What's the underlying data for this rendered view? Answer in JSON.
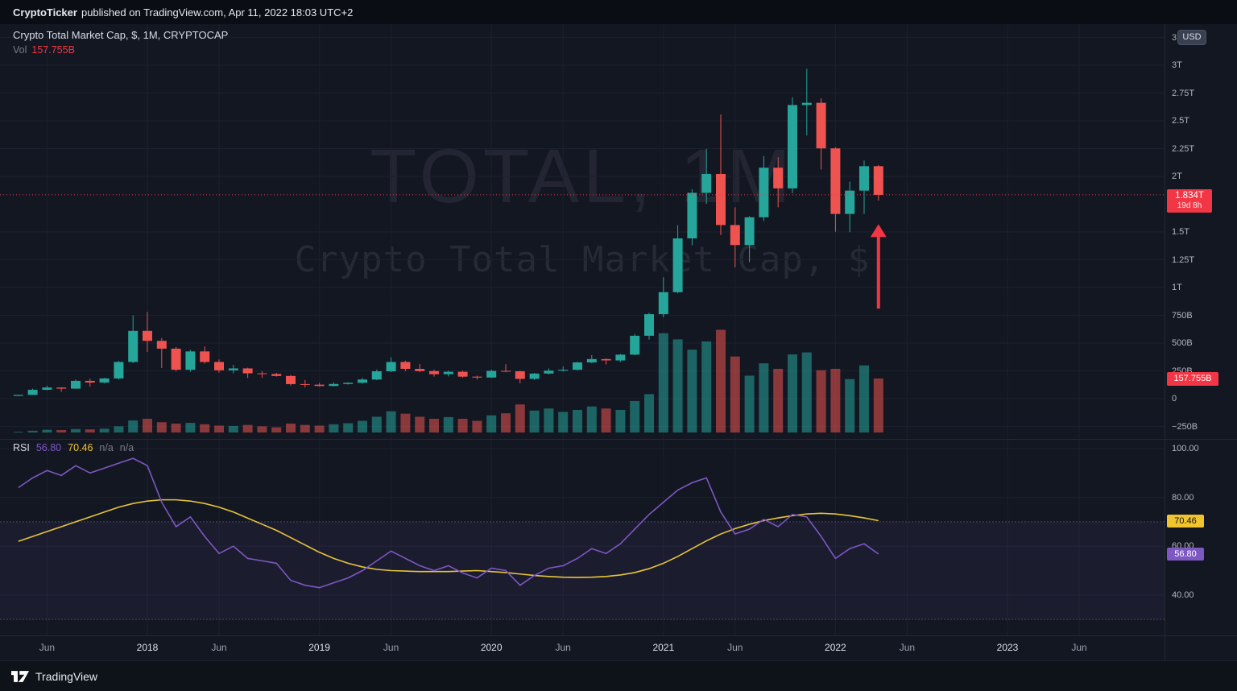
{
  "attribution": {
    "author": "CryptoTicker",
    "rest": "published on TradingView.com, Apr 11, 2022 18:03 UTC+2"
  },
  "legend": {
    "title": "Crypto Total Market Cap, $, 1M, CRYPTOCAP",
    "vol_label": "Vol",
    "vol_value": "157.755B"
  },
  "watermark": {
    "line1": "TOTAL, 1M",
    "line2": "Crypto Total Market Cap, $"
  },
  "rsi_legend": {
    "label": "RSI",
    "value": "56.80",
    "ma_value": "70.46",
    "na1": "n/a",
    "na2": "n/a"
  },
  "badges": {
    "price": {
      "value": "1.834T",
      "countdown": "19d 8h"
    },
    "volume": {
      "value": "157.755B"
    },
    "rsi_ma": {
      "value": "70.46"
    },
    "rsi": {
      "value": "56.80"
    }
  },
  "axis": {
    "currency_button": "USD"
  },
  "footer": {
    "brand": "TradingView"
  },
  "colors": {
    "bg": "#131722",
    "up": "#26a69a",
    "down": "#ef5350",
    "price_line": "#f23645",
    "rsi_line": "#7e57c2",
    "rsi_ma_line": "#e7c53a",
    "grid": "#1b202e",
    "axis_text": "#b2b5be",
    "badge_red": "#f23645",
    "badge_yellow": "#efc42e",
    "badge_purple": "#7e57c2"
  },
  "chart_data": {
    "type": "candlestick+volume+rsi",
    "symbol": "CRYPTOCAP:TOTAL",
    "interval": "1M",
    "units": "billions_usd",
    "title": "Crypto Total Market Cap, $, 1M, CRYPTOCAP",
    "months": [
      "2017-04",
      "2017-05",
      "2017-06",
      "2017-07",
      "2017-08",
      "2017-09",
      "2017-10",
      "2017-11",
      "2017-12",
      "2018-01",
      "2018-02",
      "2018-03",
      "2018-04",
      "2018-05",
      "2018-06",
      "2018-07",
      "2018-08",
      "2018-09",
      "2018-10",
      "2018-11",
      "2018-12",
      "2019-01",
      "2019-02",
      "2019-03",
      "2019-04",
      "2019-05",
      "2019-06",
      "2019-07",
      "2019-08",
      "2019-09",
      "2019-10",
      "2019-11",
      "2019-12",
      "2020-01",
      "2020-02",
      "2020-03",
      "2020-04",
      "2020-05",
      "2020-06",
      "2020-07",
      "2020-08",
      "2020-09",
      "2020-10",
      "2020-11",
      "2020-12",
      "2021-01",
      "2021-02",
      "2021-03",
      "2021-04",
      "2021-05",
      "2021-06",
      "2021-07",
      "2021-08",
      "2021-09",
      "2021-10",
      "2021-11",
      "2021-12",
      "2022-01",
      "2022-02",
      "2022-03",
      "2022-04"
    ],
    "candles": [
      [
        25,
        35,
        24,
        34
      ],
      [
        34,
        90,
        33,
        80
      ],
      [
        80,
        117,
        75,
        100
      ],
      [
        100,
        102,
        62,
        90
      ],
      [
        90,
        172,
        88,
        160
      ],
      [
        160,
        180,
        108,
        145
      ],
      [
        145,
        187,
        138,
        182
      ],
      [
        182,
        340,
        172,
        330
      ],
      [
        330,
        750,
        320,
        610
      ],
      [
        610,
        780,
        420,
        520
      ],
      [
        520,
        545,
        276,
        450
      ],
      [
        450,
        465,
        245,
        260
      ],
      [
        260,
        440,
        242,
        425
      ],
      [
        425,
        470,
        315,
        330
      ],
      [
        330,
        352,
        234,
        255
      ],
      [
        255,
        305,
        228,
        272
      ],
      [
        272,
        278,
        186,
        228
      ],
      [
        228,
        248,
        188,
        222
      ],
      [
        222,
        232,
        198,
        204
      ],
      [
        204,
        214,
        118,
        131
      ],
      [
        131,
        168,
        101,
        126
      ],
      [
        126,
        142,
        108,
        114
      ],
      [
        114,
        147,
        110,
        132
      ],
      [
        132,
        147,
        127,
        143
      ],
      [
        143,
        188,
        134,
        172
      ],
      [
        172,
        262,
        167,
        246
      ],
      [
        246,
        372,
        238,
        330
      ],
      [
        330,
        342,
        248,
        268
      ],
      [
        268,
        312,
        238,
        248
      ],
      [
        248,
        262,
        198,
        220
      ],
      [
        220,
        252,
        200,
        242
      ],
      [
        242,
        252,
        188,
        198
      ],
      [
        198,
        206,
        172,
        190
      ],
      [
        190,
        262,
        186,
        250
      ],
      [
        250,
        310,
        238,
        246
      ],
      [
        246,
        252,
        138,
        178
      ],
      [
        178,
        232,
        168,
        226
      ],
      [
        226,
        272,
        218,
        252
      ],
      [
        252,
        290,
        244,
        260
      ],
      [
        260,
        332,
        254,
        326
      ],
      [
        326,
        392,
        318,
        356
      ],
      [
        356,
        362,
        308,
        344
      ],
      [
        344,
        402,
        330,
        396
      ],
      [
        396,
        582,
        390,
        566
      ],
      [
        566,
        772,
        532,
        760
      ],
      [
        760,
        1092,
        732,
        958
      ],
      [
        958,
        1562,
        948,
        1442
      ],
      [
        1442,
        1884,
        1380,
        1852
      ],
      [
        1852,
        2248,
        1752,
        2022
      ],
      [
        2022,
        2556,
        1472,
        1562
      ],
      [
        1562,
        1722,
        1182,
        1382
      ],
      [
        1382,
        1642,
        1228,
        1632
      ],
      [
        1632,
        2182,
        1598,
        2078
      ],
      [
        2078,
        2172,
        1722,
        1892
      ],
      [
        1892,
        2712,
        1848,
        2642
      ],
      [
        2642,
        2968,
        2368,
        2662
      ],
      [
        2662,
        2702,
        2062,
        2252
      ],
      [
        2252,
        2262,
        1502,
        1662
      ],
      [
        1662,
        1952,
        1498,
        1872
      ],
      [
        1872,
        2142,
        1662,
        2092
      ],
      [
        2092,
        2102,
        1782,
        1834
      ]
    ],
    "volume": [
      2,
      5,
      8,
      7,
      10,
      9,
      11,
      18,
      35,
      40,
      30,
      26,
      28,
      24,
      20,
      19,
      22,
      18,
      15,
      26,
      22,
      20,
      24,
      27,
      34,
      46,
      62,
      55,
      46,
      40,
      45,
      40,
      34,
      50,
      56,
      82,
      64,
      70,
      60,
      66,
      76,
      70,
      66,
      92,
      112,
      290,
      272,
      242,
      266,
      300,
      222,
      166,
      202,
      186,
      228,
      234,
      182,
      186,
      156,
      196,
      157.755
    ],
    "rsi": [
      84,
      88,
      91,
      89,
      93,
      90,
      92,
      94,
      96,
      93,
      78,
      68,
      72,
      64,
      57,
      60,
      55,
      54,
      53,
      46,
      44,
      43,
      45,
      47,
      50,
      54,
      58,
      55,
      52,
      50,
      52,
      49,
      47,
      51,
      50,
      44,
      48,
      51,
      52,
      55,
      59,
      57,
      61,
      67,
      73,
      78,
      83,
      86,
      88,
      74,
      65,
      67,
      71,
      68,
      73,
      72,
      64,
      55,
      59,
      61,
      56.8
    ],
    "rsi_ma": [
      62,
      64,
      66,
      68,
      70,
      72,
      74,
      76,
      77.5,
      78.5,
      79,
      79,
      78.5,
      77.5,
      76,
      74,
      71.5,
      69,
      66.5,
      63.5,
      60.5,
      57.5,
      55,
      53,
      51.5,
      50.5,
      50,
      49.8,
      49.6,
      49.6,
      49.6,
      49.8,
      50,
      49.6,
      49.2,
      48.6,
      48,
      47.6,
      47.3,
      47.2,
      47.3,
      47.6,
      48.2,
      49.2,
      50.8,
      53,
      55.8,
      59,
      62.2,
      65,
      67.2,
      69,
      70.5,
      71.6,
      72.5,
      73.2,
      73.5,
      73.2,
      72.5,
      71.6,
      70.46
    ],
    "current_price_b": 1834,
    "current_volume_b": 157.755,
    "rsi_value": 56.8,
    "rsi_ma_value": 70.46,
    "rsi_bands": [
      70,
      30
    ],
    "price_axis_ticks": [
      {
        "label": "3.25T",
        "value": 3250
      },
      {
        "label": "3T",
        "value": 3000
      },
      {
        "label": "2.75T",
        "value": 2750
      },
      {
        "label": "2.5T",
        "value": 2500
      },
      {
        "label": "2.25T",
        "value": 2250
      },
      {
        "label": "2T",
        "value": 2000
      },
      {
        "label": "1.5T",
        "value": 1500
      },
      {
        "label": "1.25T",
        "value": 1250
      },
      {
        "label": "1T",
        "value": 1000
      },
      {
        "label": "750B",
        "value": 750
      },
      {
        "label": "500B",
        "value": 500
      },
      {
        "label": "250B",
        "value": 250
      },
      {
        "label": "0",
        "value": 0
      },
      {
        "label": "−250B",
        "value": -250
      }
    ],
    "rsi_axis_ticks": [
      {
        "label": "100.00",
        "value": 100
      },
      {
        "label": "80.00",
        "value": 80
      },
      {
        "label": "60.00",
        "value": 60
      },
      {
        "label": "40.00",
        "value": 40
      }
    ],
    "time_axis": [
      {
        "label": "Jun",
        "index": 2
      },
      {
        "label": "2018",
        "index": 9,
        "major": true
      },
      {
        "label": "Jun",
        "index": 14
      },
      {
        "label": "2019",
        "index": 21,
        "major": true
      },
      {
        "label": "Jun",
        "index": 26
      },
      {
        "label": "2020",
        "index": 33,
        "major": true
      },
      {
        "label": "Jun",
        "index": 38
      },
      {
        "label": "2021",
        "index": 45,
        "major": true
      },
      {
        "label": "Jun",
        "index": 50
      },
      {
        "label": "2022",
        "index": 57,
        "major": true
      },
      {
        "label": "Jun",
        "index": 62
      },
      {
        "label": "2023",
        "index": 69,
        "major": true
      },
      {
        "label": "Jun",
        "index": 74
      }
    ],
    "annotation": {
      "type": "arrow-up",
      "month_index": 60,
      "from_value": 810,
      "to_value": 1570
    },
    "price_range_b": [
      -362,
      3369
    ],
    "rsi_range": [
      23,
      103
    ]
  }
}
